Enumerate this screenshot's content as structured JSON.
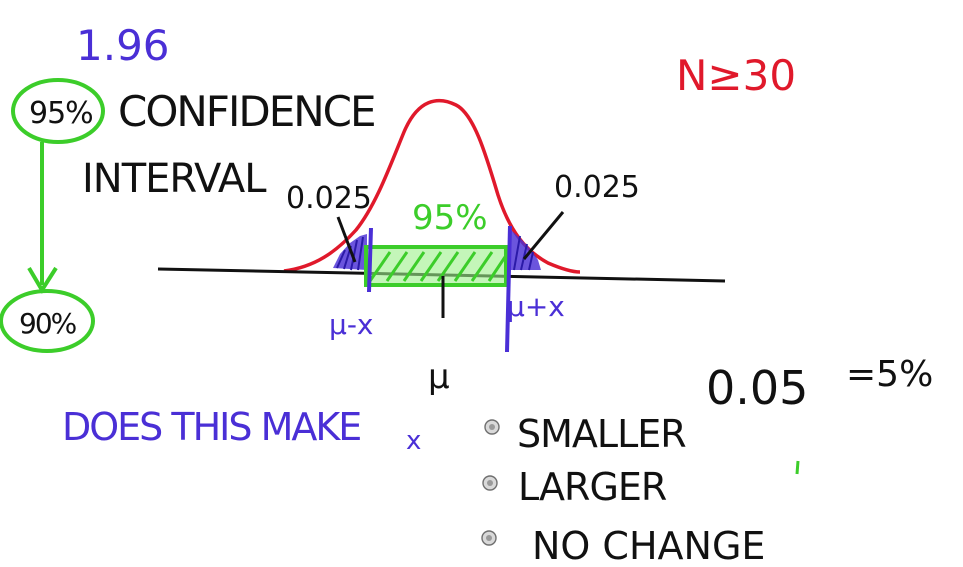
{
  "board": {
    "z_value": "1.96",
    "confidence_pct": "95%",
    "heading": {
      "line1": "CONFIDENCE",
      "line2": "INTERVAL"
    },
    "lower_confidence_pct": "90%",
    "sample_condition": "N≥30",
    "curve": {
      "left_tail": "0.025",
      "right_tail": "0.025",
      "center_pct": "95%",
      "lower_bound": "μ-x",
      "upper_bound": "μ+x",
      "mean": "μ"
    },
    "alpha_note": {
      "value": "0.05",
      "equals": "=5%"
    },
    "question": {
      "text": "DOES THIS MAKE",
      "variable": "x"
    },
    "options": [
      {
        "label": "SMALLER"
      },
      {
        "label": "LARGER"
      },
      {
        "label": "NO CHANGE"
      }
    ],
    "colors": {
      "black_ink": "#111111",
      "blue_ink": "#4a2fd6",
      "red_ink": "#e0192b",
      "green_ink": "#3ccd2a"
    }
  }
}
